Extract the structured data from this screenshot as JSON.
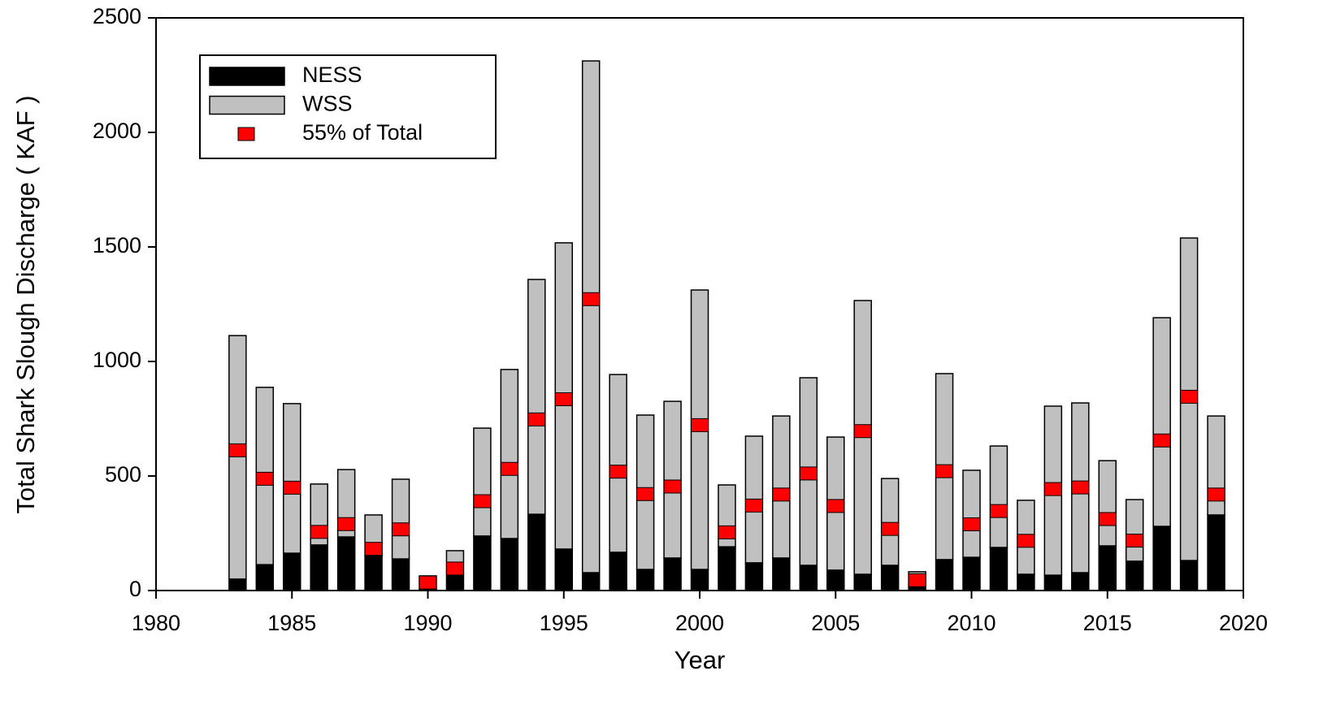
{
  "chart_data": {
    "type": "bar",
    "stacked": true,
    "x_label": "Year",
    "y_label": "Total Shark Slough Discharge ( KAF )",
    "x": [
      1983,
      1984,
      1985,
      1986,
      1987,
      1988,
      1989,
      1990,
      1991,
      1992,
      1993,
      1994,
      1995,
      1996,
      1997,
      1998,
      1999,
      2000,
      2001,
      2002,
      2003,
      2004,
      2005,
      2006,
      2007,
      2008,
      2009,
      2010,
      2011,
      2012,
      2013,
      2014,
      2015,
      2016,
      2017,
      2018,
      2019
    ],
    "series": [
      {
        "name": "NESS",
        "color": "#000000",
        "values": [
          50,
          113,
          163,
          199,
          234,
          152,
          138,
          5,
          71,
          238,
          227,
          333,
          181,
          78,
          167,
          92,
          142,
          92,
          191,
          121,
          142,
          110,
          89,
          71,
          110,
          25,
          135,
          145,
          188,
          71,
          67,
          78,
          195,
          128,
          280,
          131,
          330
        ]
      },
      {
        "name": "WSS",
        "color": "#c0c0c0",
        "values": [
          1063,
          774,
          653,
          266,
          294,
          178,
          348,
          59,
          103,
          471,
          738,
          1025,
          1337,
          2234,
          776,
          674,
          684,
          1220,
          270,
          553,
          620,
          819,
          581,
          1195,
          379,
          57,
          812,
          380,
          443,
          323,
          738,
          741,
          372,
          269,
          911,
          1408,
          432
        ]
      },
      {
        "name": "55% of Total",
        "color": "#ff0000",
        "type": "marker",
        "values": [
          612,
          488,
          449,
          256,
          290,
          182,
          267,
          35,
          96,
          390,
          531,
          747,
          835,
          1272,
          519,
          421,
          454,
          722,
          254,
          371,
          419,
          511,
          369,
          696,
          269,
          45,
          521,
          289,
          347,
          217,
          443,
          450,
          312,
          218,
          655,
          846,
          419
        ]
      }
    ],
    "xlim": [
      1980,
      2020
    ],
    "xticks": [
      1980,
      1985,
      1990,
      1995,
      2000,
      2005,
      2010,
      2015,
      2020
    ],
    "ylim": [
      0,
      2500
    ],
    "yticks": [
      0,
      500,
      1000,
      1500,
      2000,
      2500
    ],
    "grid": false,
    "legend": "upper left"
  }
}
